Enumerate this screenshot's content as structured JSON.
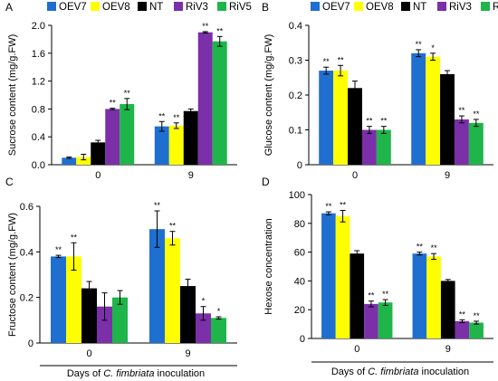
{
  "figure": {
    "colors": {
      "OEV7": "#1f6fd0",
      "OEV8": "#ffff00",
      "NT": "#000000",
      "RiV3": "#7b2fa8",
      "RiV5": "#1fb54a"
    },
    "legend_series": [
      "OEV7",
      "OEV8",
      "NT",
      "RiV3",
      "RiV5"
    ],
    "footer_left": {
      "prefix": "Days of ",
      "species": "C. fimbriata",
      "suffix": " inoculation"
    },
    "footer_right": {
      "prefix": "Days of ",
      "species": "C. fimbriata",
      "suffix": " inoculation"
    }
  },
  "chart_data": [
    {
      "panel": "A",
      "type": "bar",
      "ylabel": "Sucrose content (mg/g.FW)",
      "ylim": [
        0,
        2.0
      ],
      "yticks": [
        "0.0",
        "0.4",
        "0.8",
        "1.2",
        "1.6",
        "2.0"
      ],
      "categories": [
        "0",
        "9"
      ],
      "legend": "top",
      "series": [
        {
          "name": "OEV7",
          "values": [
            0.1,
            0.55
          ],
          "errors": [
            0.01,
            0.07
          ],
          "marks": [
            "",
            "**"
          ]
        },
        {
          "name": "OEV8",
          "values": [
            0.11,
            0.56
          ],
          "errors": [
            0.04,
            0.04
          ],
          "marks": [
            "",
            "**"
          ]
        },
        {
          "name": "NT",
          "values": [
            0.32,
            0.77
          ],
          "errors": [
            0.03,
            0.03
          ],
          "marks": [
            "",
            ""
          ]
        },
        {
          "name": "RiV3",
          "values": [
            0.8,
            1.9
          ],
          "errors": [
            0.01,
            0.01
          ],
          "marks": [
            "**",
            "**"
          ]
        },
        {
          "name": "RiV5",
          "values": [
            0.87,
            1.77
          ],
          "errors": [
            0.08,
            0.07
          ],
          "marks": [
            "**",
            "**"
          ]
        }
      ]
    },
    {
      "panel": "B",
      "type": "bar",
      "ylabel": "Glucose content (mg/g.FW)",
      "ylim": [
        0,
        0.4
      ],
      "yticks": [
        "0",
        "0.1",
        "0.2",
        "0.3",
        "0.4"
      ],
      "categories": [
        "0",
        "9"
      ],
      "legend": "top",
      "series": [
        {
          "name": "OEV7",
          "values": [
            0.27,
            0.32
          ],
          "errors": [
            0.01,
            0.01
          ],
          "marks": [
            "**",
            "**"
          ]
        },
        {
          "name": "OEV8",
          "values": [
            0.27,
            0.31
          ],
          "errors": [
            0.015,
            0.01
          ],
          "marks": [
            "**",
            "*"
          ]
        },
        {
          "name": "NT",
          "values": [
            0.22,
            0.26
          ],
          "errors": [
            0.02,
            0.01
          ],
          "marks": [
            "",
            ""
          ]
        },
        {
          "name": "RiV3",
          "values": [
            0.1,
            0.13
          ],
          "errors": [
            0.01,
            0.01
          ],
          "marks": [
            "**",
            "**"
          ]
        },
        {
          "name": "RiV5",
          "values": [
            0.1,
            0.12
          ],
          "errors": [
            0.01,
            0.01
          ],
          "marks": [
            "**",
            "**"
          ]
        }
      ]
    },
    {
      "panel": "C",
      "type": "bar",
      "ylabel": "Fructose content (mg/g.FW)",
      "ylim": [
        0,
        0.6
      ],
      "yticks": [
        "0",
        "0.2",
        "0.4",
        "0.6"
      ],
      "categories": [
        "0",
        "9"
      ],
      "legend": "none",
      "series": [
        {
          "name": "OEV7",
          "values": [
            0.38,
            0.5
          ],
          "errors": [
            0.005,
            0.08
          ],
          "marks": [
            "**",
            "**"
          ]
        },
        {
          "name": "OEV8",
          "values": [
            0.38,
            0.46
          ],
          "errors": [
            0.06,
            0.03
          ],
          "marks": [
            "**",
            "**"
          ]
        },
        {
          "name": "NT",
          "values": [
            0.24,
            0.25
          ],
          "errors": [
            0.03,
            0.03
          ],
          "marks": [
            "",
            ""
          ]
        },
        {
          "name": "RiV3",
          "values": [
            0.16,
            0.13
          ],
          "errors": [
            0.06,
            0.03
          ],
          "marks": [
            "",
            "*"
          ]
        },
        {
          "name": "RiV5",
          "values": [
            0.2,
            0.11
          ],
          "errors": [
            0.03,
            0.005
          ],
          "marks": [
            "",
            "*"
          ]
        }
      ]
    },
    {
      "panel": "D",
      "type": "bar",
      "ylabel": "Hexose concentration",
      "ylim": [
        0,
        100
      ],
      "yticks": [
        "0",
        "20",
        "40",
        "60",
        "80",
        "100"
      ],
      "categories": [
        "0",
        "9"
      ],
      "legend": "none",
      "series": [
        {
          "name": "OEV7",
          "values": [
            87,
            59
          ],
          "errors": [
            1,
            1
          ],
          "marks": [
            "**",
            "**"
          ]
        },
        {
          "name": "OEV8",
          "values": [
            85,
            57
          ],
          "errors": [
            4,
            2
          ],
          "marks": [
            "**",
            "**"
          ]
        },
        {
          "name": "NT",
          "values": [
            59,
            40
          ],
          "errors": [
            2,
            1
          ],
          "marks": [
            "",
            ""
          ]
        },
        {
          "name": "RiV3",
          "values": [
            24,
            12
          ],
          "errors": [
            2,
            1
          ],
          "marks": [
            "**",
            "**"
          ]
        },
        {
          "name": "RiV5",
          "values": [
            25,
            11
          ],
          "errors": [
            2,
            1
          ],
          "marks": [
            "**",
            "**"
          ]
        }
      ]
    }
  ]
}
